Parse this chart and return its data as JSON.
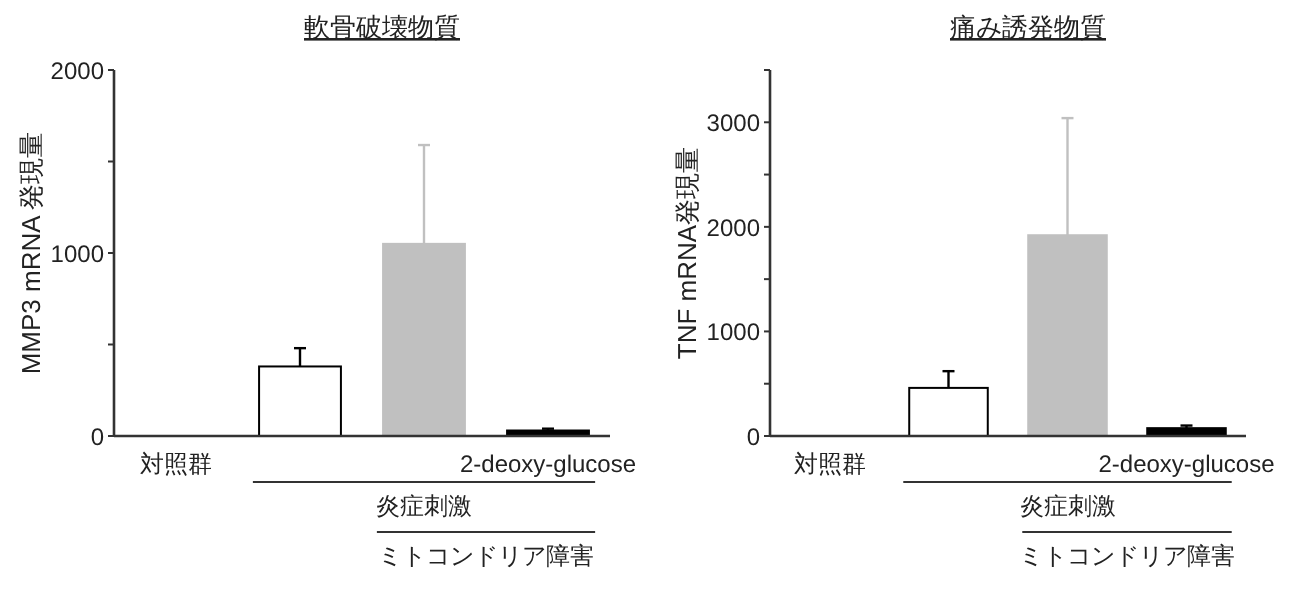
{
  "chart_data": [
    {
      "type": "bar",
      "title": "軟骨破壊物質",
      "ylabel": "MMP3 mRNA 発現量",
      "categories": [
        "対照群",
        null,
        null,
        "2-deoxy-glucose"
      ],
      "values": [
        0,
        380,
        1050,
        30
      ],
      "errors": [
        null,
        100,
        540,
        10
      ],
      "colors": [
        "#ffffff",
        "#ffffff",
        "#c0c0c0",
        "#000000"
      ],
      "ylim": [
        0,
        2000
      ],
      "yticks": [
        0,
        {
          "value": 500,
          "label": null
        },
        1000,
        {
          "value": 1500,
          "label": null
        },
        2000
      ],
      "grid": false,
      "annotations": [
        "炎症刺激",
        "ミトコンドリア障害"
      ]
    },
    {
      "type": "bar",
      "title": "痛み誘発物質",
      "ylabel": "TNF mRNA発現量",
      "categories": [
        "対照群",
        null,
        null,
        "2-deoxy-glucose"
      ],
      "values": [
        0,
        460,
        1920,
        75
      ],
      "errors": [
        null,
        160,
        1120,
        25
      ],
      "colors": [
        "#ffffff",
        "#ffffff",
        "#c0c0c0",
        "#000000"
      ],
      "ylim": [
        0,
        3500
      ],
      "yticks": [
        0,
        {
          "value": 500,
          "label": null
        },
        1000,
        {
          "value": 1500,
          "label": null
        },
        2000,
        {
          "value": 2500,
          "label": null
        },
        3000,
        {
          "value": 3500,
          "label": null
        }
      ],
      "grid": false,
      "annotations": [
        "炎症刺激",
        "ミトコンドリア障害"
      ]
    }
  ]
}
